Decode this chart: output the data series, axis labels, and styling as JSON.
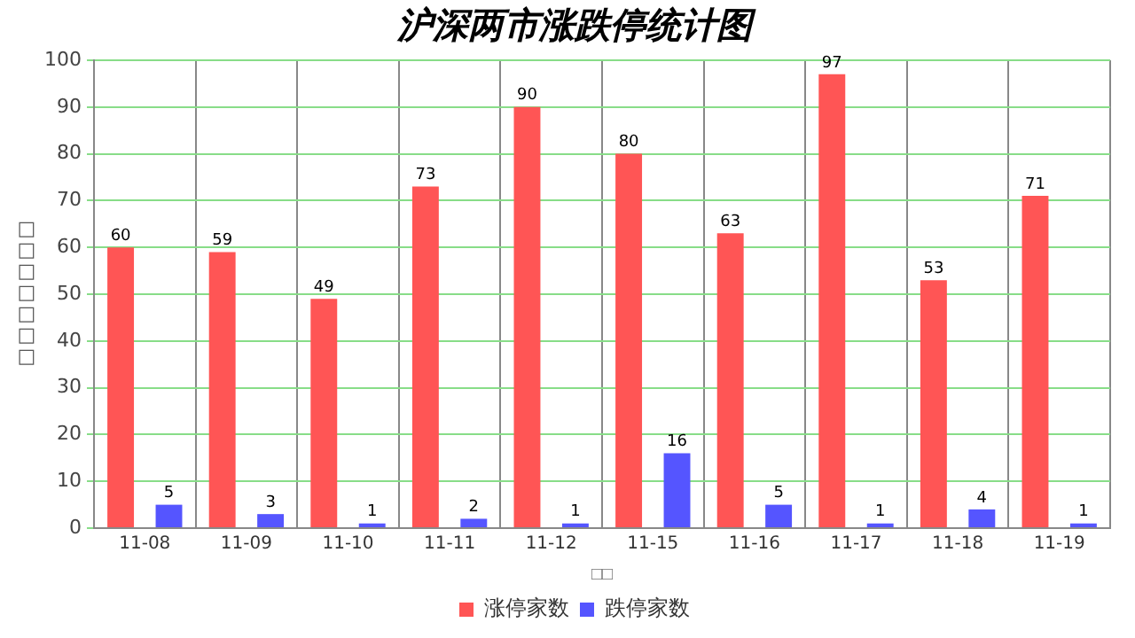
{
  "chart_data": {
    "type": "bar",
    "title": "沪深两市涨跌停统计图",
    "xlabel": "□□",
    "ylabel": "□□□□□□□",
    "categories": [
      "11-08",
      "11-09",
      "11-10",
      "11-11",
      "11-12",
      "11-15",
      "11-16",
      "11-17",
      "11-18",
      "11-19"
    ],
    "series": [
      {
        "name": "涨停家数",
        "color": "#ff5555",
        "values": [
          60,
          59,
          49,
          73,
          90,
          80,
          63,
          97,
          53,
          71
        ]
      },
      {
        "name": "跌停家数",
        "color": "#5555ff",
        "values": [
          5,
          3,
          1,
          2,
          1,
          16,
          5,
          1,
          4,
          1
        ]
      }
    ],
    "ylim": [
      0,
      100
    ],
    "yticks": [
      0,
      10,
      20,
      30,
      40,
      50,
      60,
      70,
      80,
      90,
      100
    ],
    "grid": true,
    "legend": "bottom",
    "data_labels": true
  }
}
